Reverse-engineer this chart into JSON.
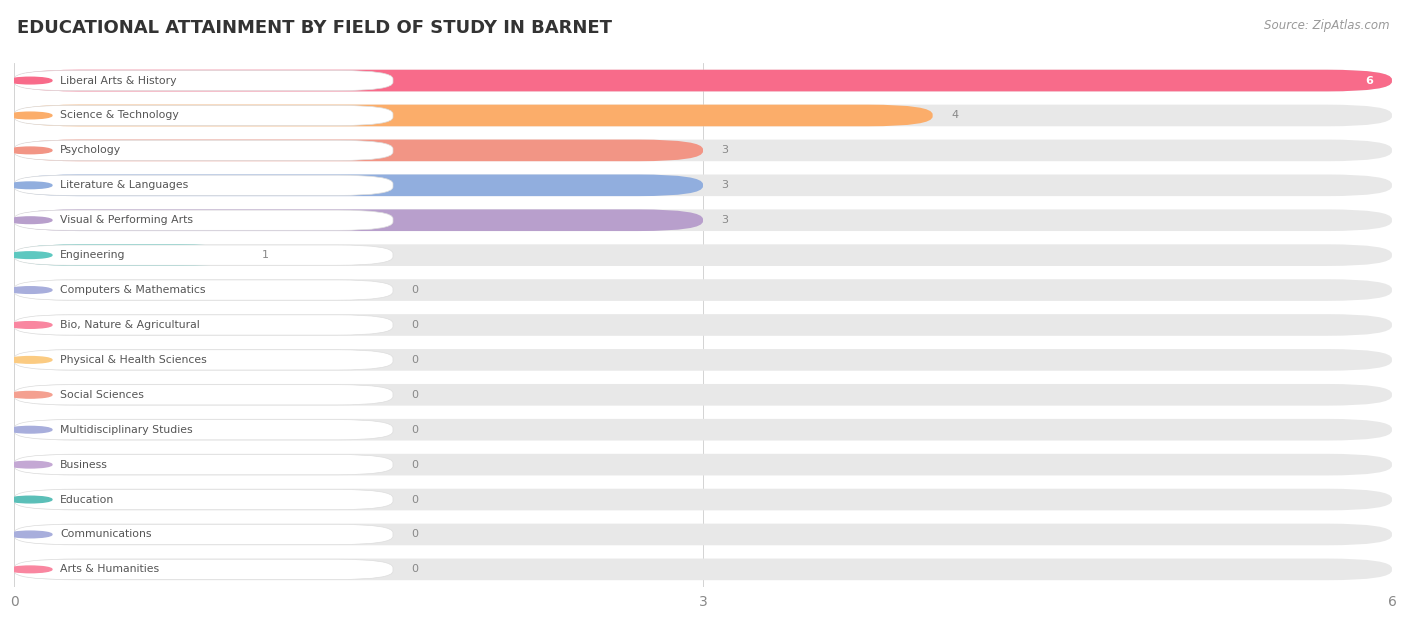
{
  "title": "EDUCATIONAL ATTAINMENT BY FIELD OF STUDY IN BARNET",
  "source": "Source: ZipAtlas.com",
  "categories": [
    "Liberal Arts & History",
    "Science & Technology",
    "Psychology",
    "Literature & Languages",
    "Visual & Performing Arts",
    "Engineering",
    "Computers & Mathematics",
    "Bio, Nature & Agricultural",
    "Physical & Health Sciences",
    "Social Sciences",
    "Multidisciplinary Studies",
    "Business",
    "Education",
    "Communications",
    "Arts & Humanities"
  ],
  "values": [
    6,
    4,
    3,
    3,
    3,
    1,
    0,
    0,
    0,
    0,
    0,
    0,
    0,
    0,
    0
  ],
  "bar_colors": [
    "#F86B8A",
    "#FBAD6A",
    "#F29585",
    "#91AEDE",
    "#B89FCC",
    "#5DC8C0",
    "#A8AEDC",
    "#F986A0",
    "#FBCB82",
    "#F4A090",
    "#A8AEDC",
    "#C4A8D4",
    "#5BBFB8",
    "#A8AEDC",
    "#F986A0"
  ],
  "xlim": [
    0,
    6
  ],
  "xticks": [
    0,
    3,
    6
  ],
  "background_color": "#ffffff",
  "row_track_color": "#eeeeee",
  "title_fontsize": 13,
  "bar_height": 0.62,
  "value_label_color": "#888888",
  "value_inside_color": "#ffffff"
}
